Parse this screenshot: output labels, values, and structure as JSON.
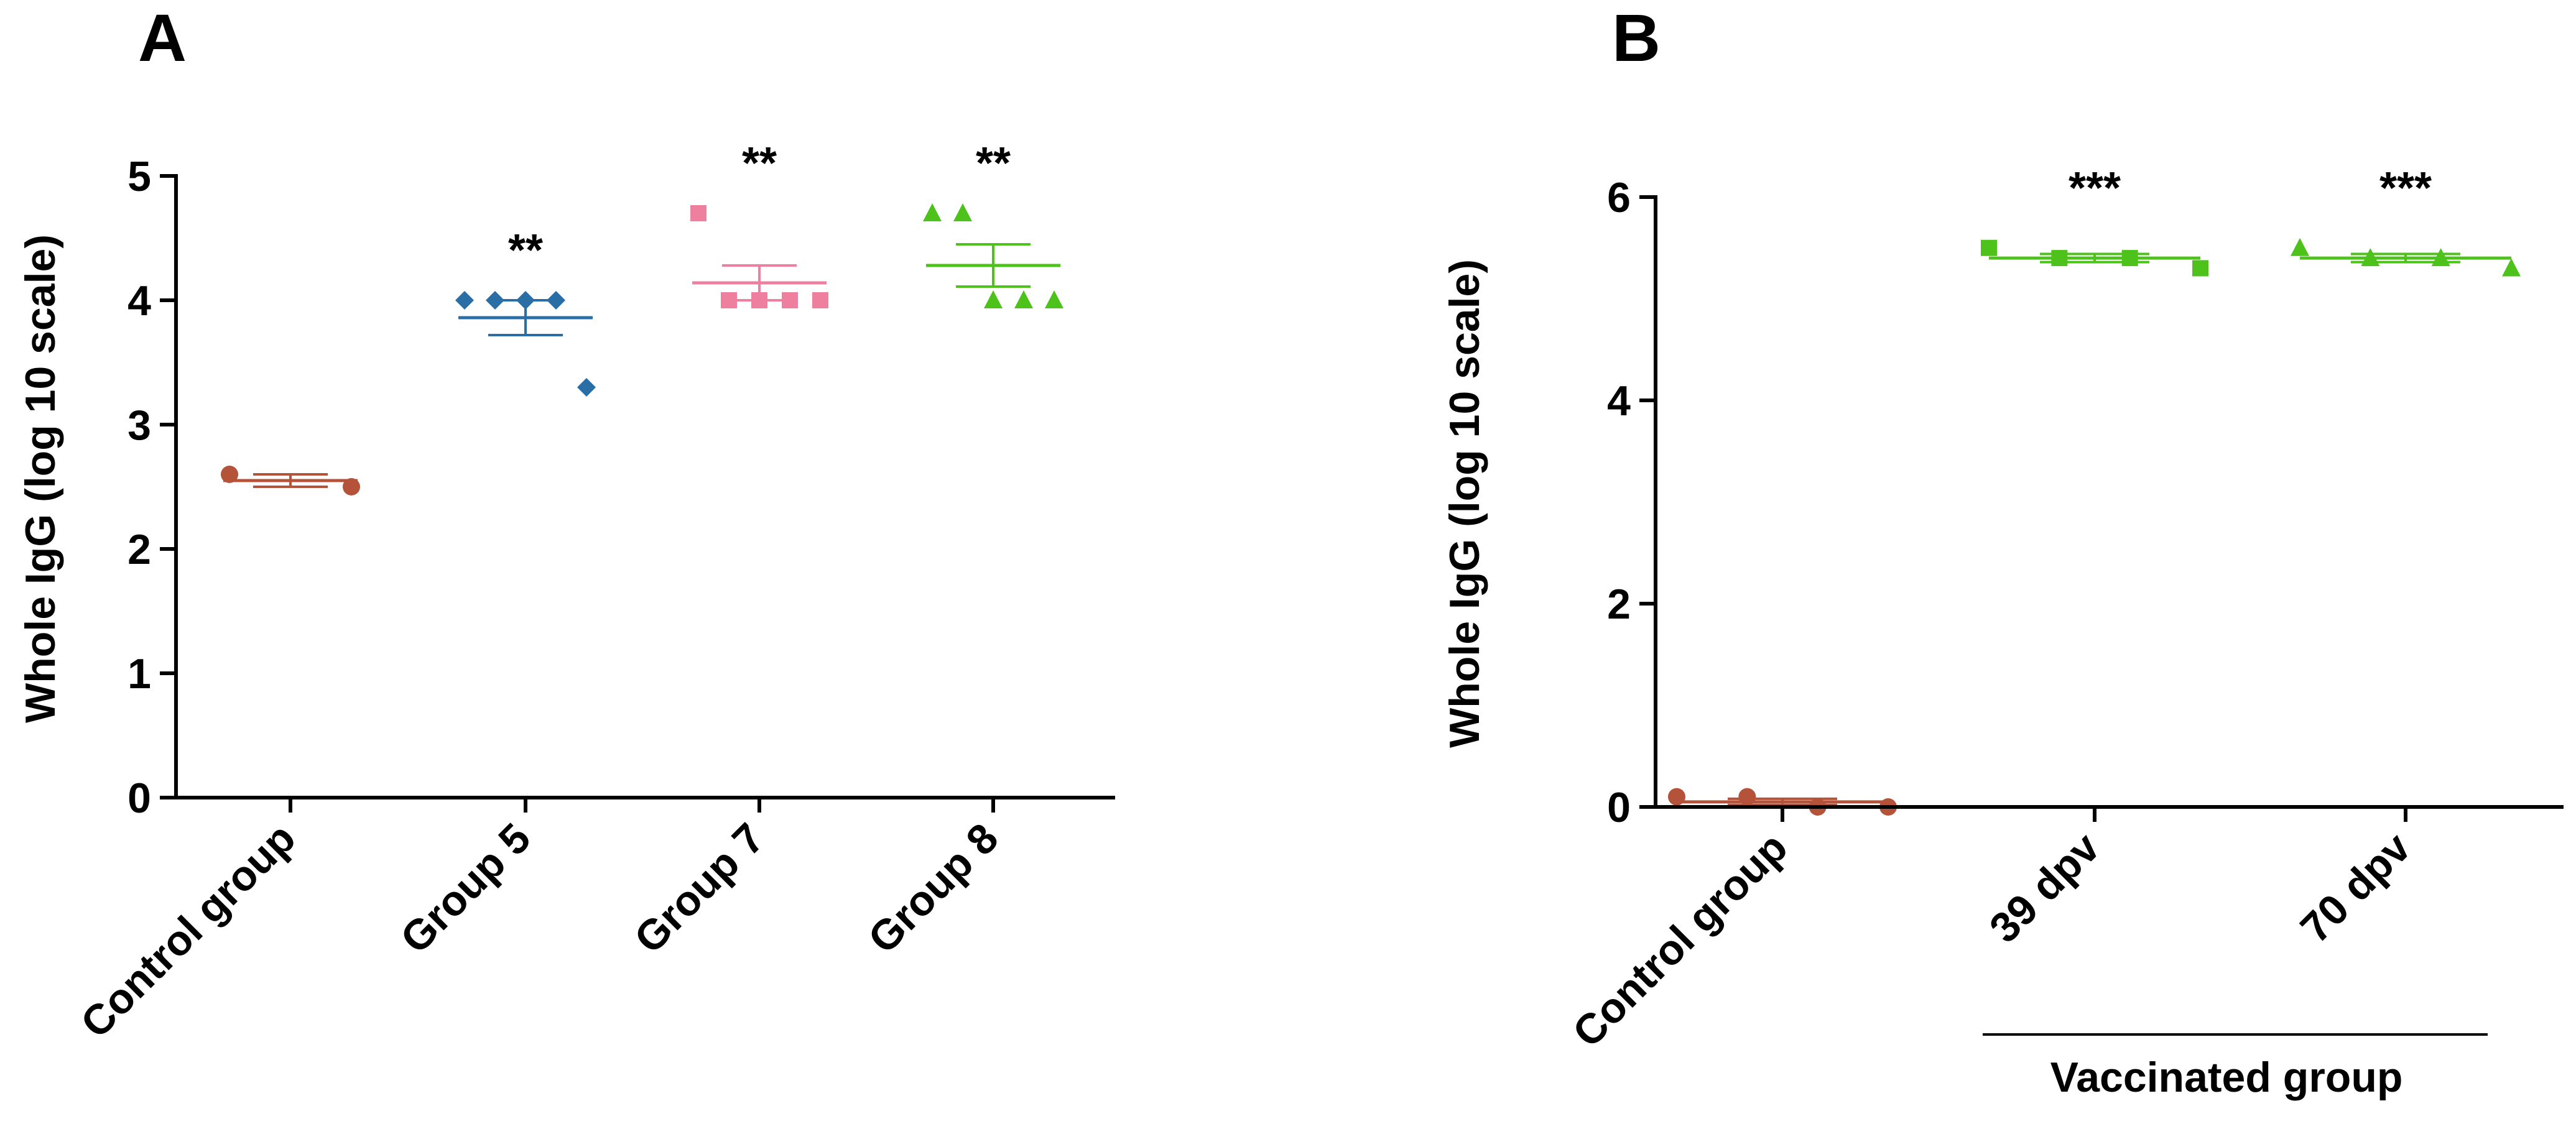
{
  "chart_data": [
    {
      "panel": "A",
      "type": "scatter",
      "ylabel": "Whole IgG (log 10 scale)",
      "ylim": [
        0,
        5
      ],
      "yticks": [
        0,
        1,
        2,
        3,
        4,
        5
      ],
      "categories": [
        "Control group",
        "Group 5",
        "Group 7",
        "Group 8"
      ],
      "series": [
        {
          "name": "Control group",
          "color": "#b5533a",
          "marker": "circle",
          "points": [
            2.6,
            2.5
          ],
          "mean": 2.55,
          "sem": 0.05,
          "significance": ""
        },
        {
          "name": "Group 5",
          "color": "#2a6ea6",
          "marker": "diamond",
          "points": [
            4.0,
            4.0,
            4.0,
            4.0,
            3.3
          ],
          "mean": 3.86,
          "sem": 0.14,
          "significance": "**"
        },
        {
          "name": "Group 7",
          "color": "#ee7f9f",
          "marker": "square",
          "points": [
            4.7,
            4.0,
            4.0,
            4.0,
            4.0
          ],
          "mean": 4.14,
          "sem": 0.14,
          "significance": "**"
        },
        {
          "name": "Group 8",
          "color": "#4cc21b",
          "marker": "triangle",
          "points": [
            4.7,
            4.7,
            4.0,
            4.0,
            4.0
          ],
          "mean": 4.28,
          "sem": 0.17,
          "significance": "**"
        }
      ]
    },
    {
      "panel": "B",
      "type": "scatter",
      "ylabel": "Whole IgG (log 10 scale)",
      "ylim": [
        0,
        6
      ],
      "yticks": [
        0,
        2,
        4,
        6
      ],
      "categories": [
        "Control group",
        "39 dpv",
        "70 dpv"
      ],
      "bracket": {
        "label": "Vaccinated group",
        "spans": [
          "39 dpv",
          "70 dpv"
        ]
      },
      "series": [
        {
          "name": "Control group",
          "color": "#b5533a",
          "marker": "circle",
          "points": [
            0.1,
            0.1,
            0.0,
            0.0
          ],
          "mean": 0.05,
          "sem": 0.03,
          "significance": ""
        },
        {
          "name": "39 dpv",
          "color": "#4cc21b",
          "marker": "square",
          "points": [
            5.5,
            5.4,
            5.4,
            5.3
          ],
          "mean": 5.4,
          "sem": 0.04,
          "significance": "***"
        },
        {
          "name": "70 dpv",
          "color": "#4cc21b",
          "marker": "triangle",
          "points": [
            5.5,
            5.4,
            5.4,
            5.3
          ],
          "mean": 5.4,
          "sem": 0.04,
          "significance": "***"
        }
      ]
    }
  ]
}
